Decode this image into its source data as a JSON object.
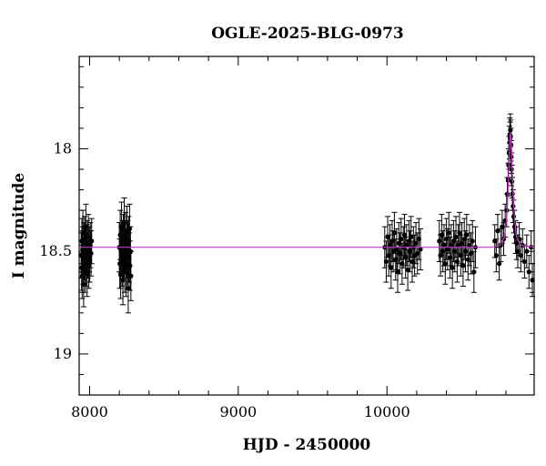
{
  "chart_data": {
    "type": "scatter",
    "title": "OGLE-2025-BLG-0973",
    "xlabel": "HJD - 2450000",
    "ylabel": "I magnitude",
    "xlim": [
      7930,
      10990
    ],
    "ylim": [
      19.2,
      17.55
    ],
    "y_inverted": true,
    "grid": false,
    "legend": "none",
    "x_major_ticks": [
      8000,
      9000,
      10000
    ],
    "x_minor_step": 200,
    "y_major_ticks": [
      18,
      18.5,
      19
    ],
    "y_minor_step": 0.1,
    "x_tick_labels": [
      "8000",
      "9000",
      "10000"
    ],
    "y_tick_labels": [
      "18",
      "18.5",
      "19"
    ],
    "colors": {
      "points": "#000000",
      "model": "#cc33cc"
    },
    "model": {
      "name": "",
      "baseline_mag": 18.48,
      "peak_hjd": 10830,
      "peak_mag": 17.92,
      "curve": [
        [
          7930,
          18.48
        ],
        [
          10700,
          18.48
        ],
        [
          10760,
          18.47
        ],
        [
          10790,
          18.43
        ],
        [
          10805,
          18.34
        ],
        [
          10815,
          18.2
        ],
        [
          10822,
          18.05
        ],
        [
          10828,
          17.94
        ],
        [
          10831,
          17.92
        ],
        [
          10834,
          17.94
        ],
        [
          10840,
          18.05
        ],
        [
          10848,
          18.2
        ],
        [
          10858,
          18.34
        ],
        [
          10872,
          18.43
        ],
        [
          10900,
          18.47
        ],
        [
          10990,
          18.48
        ]
      ]
    },
    "series": [
      {
        "segments": [
          {
            "x_range": [
              7942,
              8015
            ],
            "y_mean": 18.5,
            "scatter": 0.09,
            "err": 0.11,
            "points": [
              [
                7943,
                18.52
              ],
              [
                7946,
                18.58
              ],
              [
                7948,
                18.45
              ],
              [
                7950,
                18.62
              ],
              [
                7953,
                18.49
              ],
              [
                7955,
                18.41
              ],
              [
                7957,
                18.55
              ],
              [
                7960,
                18.66
              ],
              [
                7962,
                18.47
              ],
              [
                7965,
                18.53
              ],
              [
                7967,
                18.44
              ],
              [
                7970,
                18.59
              ],
              [
                7972,
                18.5
              ],
              [
                7975,
                18.38
              ],
              [
                7978,
                18.56
              ],
              [
                7980,
                18.48
              ],
              [
                7983,
                18.61
              ],
              [
                7986,
                18.46
              ],
              [
                7989,
                18.52
              ],
              [
                7992,
                18.43
              ],
              [
                7995,
                18.57
              ],
              [
                7998,
                18.49
              ],
              [
                8001,
                18.54
              ],
              [
                8005,
                18.47
              ],
              [
                8010,
                18.51
              ],
              [
                8014,
                18.45
              ]
            ]
          },
          {
            "x_range": [
              8198,
              8280
            ],
            "y_mean": 18.5,
            "scatter": 0.1,
            "err": 0.12,
            "points": [
              [
                8200,
                18.48
              ],
              [
                8203,
                18.56
              ],
              [
                8206,
                18.42
              ],
              [
                8209,
                18.61
              ],
              [
                8212,
                18.5
              ],
              [
                8215,
                18.38
              ],
              [
                8218,
                18.55
              ],
              [
                8221,
                18.47
              ],
              [
                8224,
                18.64
              ],
              [
                8227,
                18.44
              ],
              [
                8230,
                18.52
              ],
              [
                8233,
                18.36
              ],
              [
                8236,
                18.58
              ],
              [
                8239,
                18.49
              ],
              [
                8242,
                18.43
              ],
              [
                8245,
                18.6
              ],
              [
                8248,
                18.51
              ],
              [
                8251,
                18.4
              ],
              [
                8254,
                18.56
              ],
              [
                8257,
                18.47
              ],
              [
                8260,
                18.68
              ],
              [
                8263,
                18.45
              ],
              [
                8266,
                18.53
              ],
              [
                8269,
                18.39
              ],
              [
                8272,
                18.57
              ],
              [
                8275,
                18.5
              ],
              [
                8278,
                18.62
              ]
            ]
          },
          {
            "x_range": [
              9980,
              10230
            ],
            "y_mean": 18.49,
            "scatter": 0.07,
            "err": 0.1,
            "points": [
              [
                9985,
                18.48
              ],
              [
                9995,
                18.55
              ],
              [
                10005,
                18.43
              ],
              [
                10012,
                18.52
              ],
              [
                10020,
                18.47
              ],
              [
                10028,
                18.58
              ],
              [
                10035,
                18.45
              ],
              [
                10042,
                18.5
              ],
              [
                10050,
                18.41
              ],
              [
                10058,
                18.54
              ],
              [
                10065,
                18.49
              ],
              [
                10072,
                18.6
              ],
              [
                10080,
                18.46
              ],
              [
                10088,
                18.51
              ],
              [
                10095,
                18.44
              ],
              [
                10102,
                18.56
              ],
              [
                10110,
                18.48
              ],
              [
                10118,
                18.42
              ],
              [
                10125,
                18.53
              ],
              [
                10132,
                18.47
              ],
              [
                10140,
                18.59
              ],
              [
                10148,
                18.45
              ],
              [
                10155,
                18.5
              ],
              [
                10162,
                18.43
              ],
              [
                10170,
                18.55
              ],
              [
                10178,
                18.48
              ],
              [
                10186,
                18.52
              ],
              [
                10195,
                18.46
              ],
              [
                10205,
                18.51
              ],
              [
                10215,
                18.44
              ],
              [
                10225,
                18.49
              ]
            ]
          },
          {
            "x_range": [
              10350,
              10600
            ],
            "y_mean": 18.48,
            "scatter": 0.07,
            "err": 0.1,
            "points": [
              [
                10352,
                18.45
              ],
              [
                10360,
                18.52
              ],
              [
                10368,
                18.42
              ],
              [
                10376,
                18.5
              ],
              [
                10384,
                18.47
              ],
              [
                10392,
                18.56
              ],
              [
                10400,
                18.44
              ],
              [
                10408,
                18.49
              ],
              [
                10416,
                18.41
              ],
              [
                10424,
                18.53
              ],
              [
                10432,
                18.47
              ],
              [
                10440,
                18.58
              ],
              [
                10448,
                18.45
              ],
              [
                10456,
                18.5
              ],
              [
                10464,
                18.43
              ],
              [
                10472,
                18.55
              ],
              [
                10480,
                18.47
              ],
              [
                10488,
                18.41
              ],
              [
                10496,
                18.52
              ],
              [
                10504,
                18.46
              ],
              [
                10512,
                18.57
              ],
              [
                10520,
                18.44
              ],
              [
                10528,
                18.5
              ],
              [
                10536,
                18.42
              ],
              [
                10545,
                18.54
              ],
              [
                10555,
                18.47
              ],
              [
                10565,
                18.51
              ],
              [
                10575,
                18.45
              ],
              [
                10585,
                18.6
              ],
              [
                10595,
                18.48
              ]
            ]
          },
          {
            "x_range": [
              10720,
              10980
            ],
            "y_mean": null,
            "scatter": 0.05,
            "err": 0.08,
            "points": [
              [
                10725,
                18.45
              ],
              [
                10735,
                18.52
              ],
              [
                10745,
                18.4
              ],
              [
                10755,
                18.56
              ],
              [
                10765,
                18.47
              ],
              [
                10775,
                18.38
              ],
              [
                10785,
                18.44
              ],
              [
                10795,
                18.35
              ],
              [
                10805,
                18.3
              ],
              [
                10810,
                18.22
              ],
              [
                10815,
                18.15
              ],
              [
                10818,
                18.08
              ],
              [
                10821,
                18.02
              ],
              [
                10824,
                17.97
              ],
              [
                10826,
                17.93
              ],
              [
                10828,
                17.95
              ],
              [
                10830,
                17.91
              ],
              [
                10832,
                17.94
              ],
              [
                10834,
                17.98
              ],
              [
                10836,
                18.04
              ],
              [
                10838,
                18.1
              ],
              [
                10841,
                18.16
              ],
              [
                10844,
                18.22
              ],
              [
                10848,
                18.28
              ],
              [
                10852,
                18.33
              ],
              [
                10858,
                18.38
              ],
              [
                10865,
                18.43
              ],
              [
                10872,
                18.46
              ],
              [
                10880,
                18.5
              ],
              [
                10890,
                18.44
              ],
              [
                10900,
                18.52
              ],
              [
                10912,
                18.47
              ],
              [
                10925,
                18.55
              ],
              [
                10940,
                18.5
              ],
              [
                10955,
                18.6
              ],
              [
                10970,
                18.48
              ],
              [
                10978,
                18.64
              ]
            ]
          }
        ]
      }
    ]
  }
}
